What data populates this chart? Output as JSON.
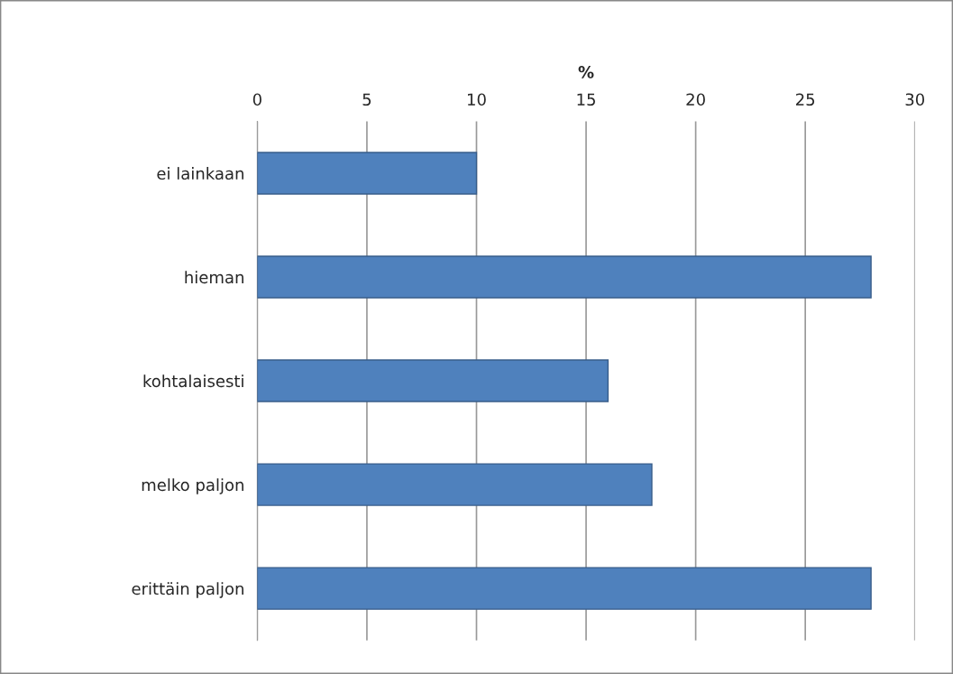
{
  "chart_data": {
    "type": "bar",
    "orientation": "horizontal",
    "xlabel": "%",
    "categories": [
      "ei lainkaan",
      "hieman",
      "kohtalaisesti",
      "melko paljon",
      "erittäin paljon"
    ],
    "values": [
      10,
      28,
      16,
      18,
      28
    ],
    "color": "#4f81bd",
    "xlim": [
      0,
      30
    ],
    "xticks": [
      0,
      5,
      10,
      15,
      20,
      25,
      30
    ],
    "grid": "x"
  }
}
